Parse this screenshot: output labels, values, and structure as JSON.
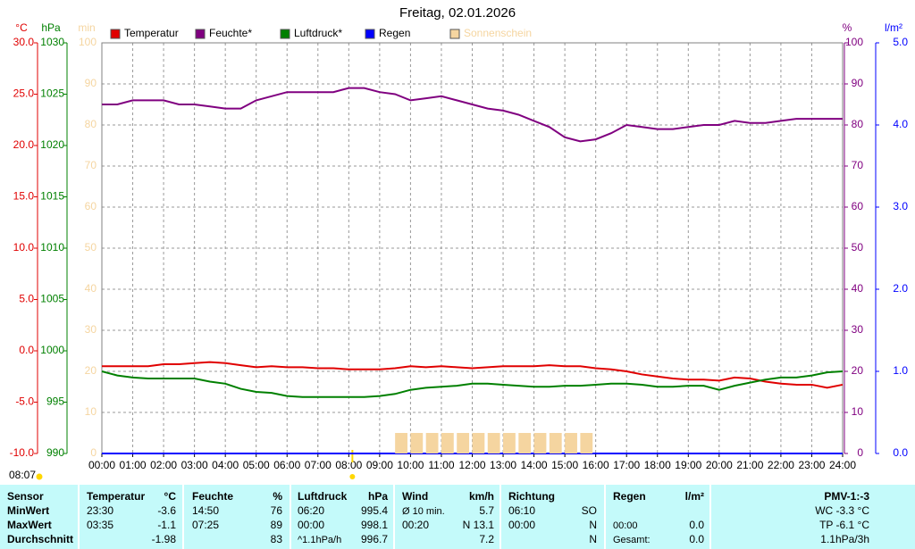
{
  "chart_data": {
    "type": "line",
    "title": "Freitag, 02.01.2026",
    "ylabel": "°C",
    "y2label": "%",
    "y3label": "hPa",
    "y4label": "min",
    "y5label": "l/m²",
    "xlim": [
      0,
      24
    ],
    "xticks": [
      {
        "value": 0,
        "label": "00:00"
      },
      {
        "value": 1,
        "label": "01:00"
      },
      {
        "value": 2,
        "label": "02:00"
      },
      {
        "value": 3,
        "label": "03:00"
      },
      {
        "value": 4,
        "label": "04:00"
      },
      {
        "value": 5,
        "label": "05:00"
      },
      {
        "value": 6,
        "label": "06:00"
      },
      {
        "value": 7,
        "label": "07:00"
      },
      {
        "value": 8,
        "label": "08:00"
      },
      {
        "value": 9,
        "label": "09:00"
      },
      {
        "value": 10,
        "label": "10:00"
      },
      {
        "value": 11,
        "label": "11:00"
      },
      {
        "value": 12,
        "label": "12:00"
      },
      {
        "value": 13,
        "label": "13:00"
      },
      {
        "value": 14,
        "label": "14:00"
      },
      {
        "value": 15,
        "label": "15:00"
      },
      {
        "value": 16,
        "label": "16:00"
      },
      {
        "value": 17,
        "label": "17:00"
      },
      {
        "value": 18,
        "label": "18:00"
      },
      {
        "value": 19,
        "label": "19:00"
      },
      {
        "value": 20,
        "label": "20:00"
      },
      {
        "value": 21,
        "label": "21:00"
      },
      {
        "value": 22,
        "label": "22:00"
      },
      {
        "value": 23,
        "label": "23:00"
      },
      {
        "value": 24,
        "label": "24:00"
      }
    ],
    "ylim": [
      -10,
      30
    ],
    "yticks": [
      {
        "value": -10,
        "label": "-10.0"
      },
      {
        "value": -5,
        "label": "-5.0"
      },
      {
        "value": 0,
        "label": "0.0"
      },
      {
        "value": 5,
        "label": "5.0"
      },
      {
        "value": 10,
        "label": "10.0"
      },
      {
        "value": 15,
        "label": "15.0"
      },
      {
        "value": 20,
        "label": "20.0"
      },
      {
        "value": 25,
        "label": "25.0"
      },
      {
        "value": 30,
        "label": "30.0"
      }
    ],
    "y2lim": [
      0,
      100
    ],
    "y2ticks": [
      0,
      10,
      20,
      30,
      40,
      50,
      60,
      70,
      80,
      90,
      100
    ],
    "y3lim": [
      990,
      1030
    ],
    "y3ticks": [
      990,
      995,
      1000,
      1005,
      1010,
      1015,
      1020,
      1025,
      1030
    ],
    "y4lim": [
      0,
      100
    ],
    "y4ticks": [
      0,
      10,
      20,
      30,
      40,
      50,
      60,
      70,
      80,
      90,
      100
    ],
    "y5lim": [
      0,
      5
    ],
    "y5ticks": [
      {
        "value": 0,
        "label": "0.0"
      },
      {
        "value": 1,
        "label": "1.0"
      },
      {
        "value": 2,
        "label": "2.0"
      },
      {
        "value": 3,
        "label": "3.0"
      },
      {
        "value": 4,
        "label": "4.0"
      },
      {
        "value": 5,
        "label": "5.0"
      }
    ],
    "grid": true,
    "sunrise": "08:07",
    "x": [
      0,
      0.5,
      1,
      1.5,
      2,
      2.5,
      3,
      3.5,
      4,
      4.5,
      5,
      5.5,
      6,
      6.5,
      7,
      7.5,
      8,
      8.5,
      9,
      9.5,
      10,
      10.5,
      11,
      11.5,
      12,
      12.5,
      13,
      13.5,
      14,
      14.5,
      15,
      15.5,
      16,
      16.5,
      17,
      17.5,
      18,
      18.5,
      19,
      19.5,
      20,
      20.5,
      21,
      21.5,
      22,
      22.5,
      23,
      23.5,
      24
    ],
    "series": [
      {
        "name": "Temperatur",
        "color": "#e00000",
        "axis": "y",
        "values": [
          -1.5,
          -1.5,
          -1.5,
          -1.5,
          -1.3,
          -1.3,
          -1.2,
          -1.1,
          -1.2,
          -1.4,
          -1.6,
          -1.5,
          -1.6,
          -1.6,
          -1.7,
          -1.7,
          -1.8,
          -1.8,
          -1.8,
          -1.7,
          -1.5,
          -1.6,
          -1.5,
          -1.6,
          -1.7,
          -1.6,
          -1.5,
          -1.5,
          -1.5,
          -1.4,
          -1.5,
          -1.5,
          -1.7,
          -1.8,
          -2.0,
          -2.3,
          -2.5,
          -2.7,
          -2.8,
          -2.8,
          -2.9,
          -2.6,
          -2.7,
          -3.0,
          -3.2,
          -3.3,
          -3.3,
          -3.6,
          -3.3
        ]
      },
      {
        "name": "Feuchte*",
        "color": "#800080",
        "axis": "y2",
        "values": [
          85,
          85,
          86,
          86,
          86,
          85,
          85,
          84.5,
          84,
          84,
          86,
          87,
          88,
          88,
          88,
          88,
          89,
          89,
          88,
          87.5,
          86,
          86.5,
          87,
          86,
          85,
          84,
          83.5,
          82.5,
          81,
          79.5,
          77,
          76,
          76.5,
          78,
          80,
          79.5,
          79,
          79,
          79.5,
          80,
          80,
          81,
          80.5,
          80.5,
          81,
          81.5,
          81.5,
          81.5,
          81.5
        ]
      },
      {
        "name": "Luftdruck*",
        "color": "#008000",
        "axis": "y3",
        "values": [
          998.0,
          997.6,
          997.4,
          997.3,
          997.3,
          997.3,
          997.3,
          997.0,
          996.8,
          996.3,
          996.0,
          995.9,
          995.6,
          995.5,
          995.5,
          995.5,
          995.5,
          995.5,
          995.6,
          995.8,
          996.2,
          996.4,
          996.5,
          996.6,
          996.8,
          996.8,
          996.7,
          996.6,
          996.5,
          996.5,
          996.6,
          996.6,
          996.7,
          996.8,
          996.8,
          996.7,
          996.5,
          996.5,
          996.6,
          996.6,
          996.2,
          996.6,
          996.9,
          997.2,
          997.4,
          997.4,
          997.6,
          997.9,
          998.0
        ]
      },
      {
        "name": "Regen",
        "color": "#0000ff",
        "axis": "y5",
        "values": [
          0,
          0,
          0,
          0,
          0,
          0,
          0,
          0,
          0,
          0,
          0,
          0,
          0,
          0,
          0,
          0,
          0,
          0,
          0,
          0,
          0,
          0,
          0,
          0,
          0,
          0,
          0,
          0,
          0,
          0,
          0,
          0,
          0,
          0,
          0,
          0,
          0,
          0,
          0,
          0,
          0,
          0,
          0,
          0,
          0,
          0,
          0,
          0,
          0
        ]
      },
      {
        "name": "Sonnenschein",
        "color": "#f5d5a0",
        "axis": "y4",
        "type": "bar",
        "values": [
          0,
          0,
          0,
          0,
          0,
          0,
          0,
          0,
          0,
          0,
          0,
          0,
          0,
          0,
          0,
          0,
          0,
          0,
          0,
          5,
          5,
          5,
          5,
          5,
          5,
          5,
          5,
          5,
          5,
          5,
          5,
          5,
          0,
          0,
          0,
          0,
          0,
          0,
          0,
          0,
          0,
          0,
          0,
          0,
          0,
          0,
          0,
          0,
          0
        ]
      }
    ]
  },
  "table": {
    "header": [
      "Sensor",
      "Temperatur",
      "°C",
      "Feuchte",
      "%",
      "Luftdruck",
      "hPa",
      "Wind",
      "km/h",
      "Richtung",
      null,
      "Regen",
      "l/m²",
      "PMV-1:-3"
    ],
    "rows": [
      [
        "MinWert",
        "23:30",
        "-3.6",
        "14:50",
        "76",
        "06:20",
        "995.4",
        "Ø 10 min.",
        "5.7",
        "06:10",
        "SO",
        null,
        null,
        "WC -3.3 °C"
      ],
      [
        "MaxWert",
        "03:35",
        "-1.1",
        "07:25",
        "89",
        "00:00",
        "998.1",
        "00:20",
        "N 13.1",
        "00:00",
        "N",
        "00:00",
        "0.0",
        "TP -6.1 °C"
      ],
      [
        "Durchschnitt",
        null,
        "-1.98",
        null,
        "83",
        "^1.1hPa/h",
        "996.7",
        null,
        "7.2",
        null,
        "N",
        "Gesamt:",
        "0.0",
        "1.1hPa/3h"
      ]
    ]
  }
}
